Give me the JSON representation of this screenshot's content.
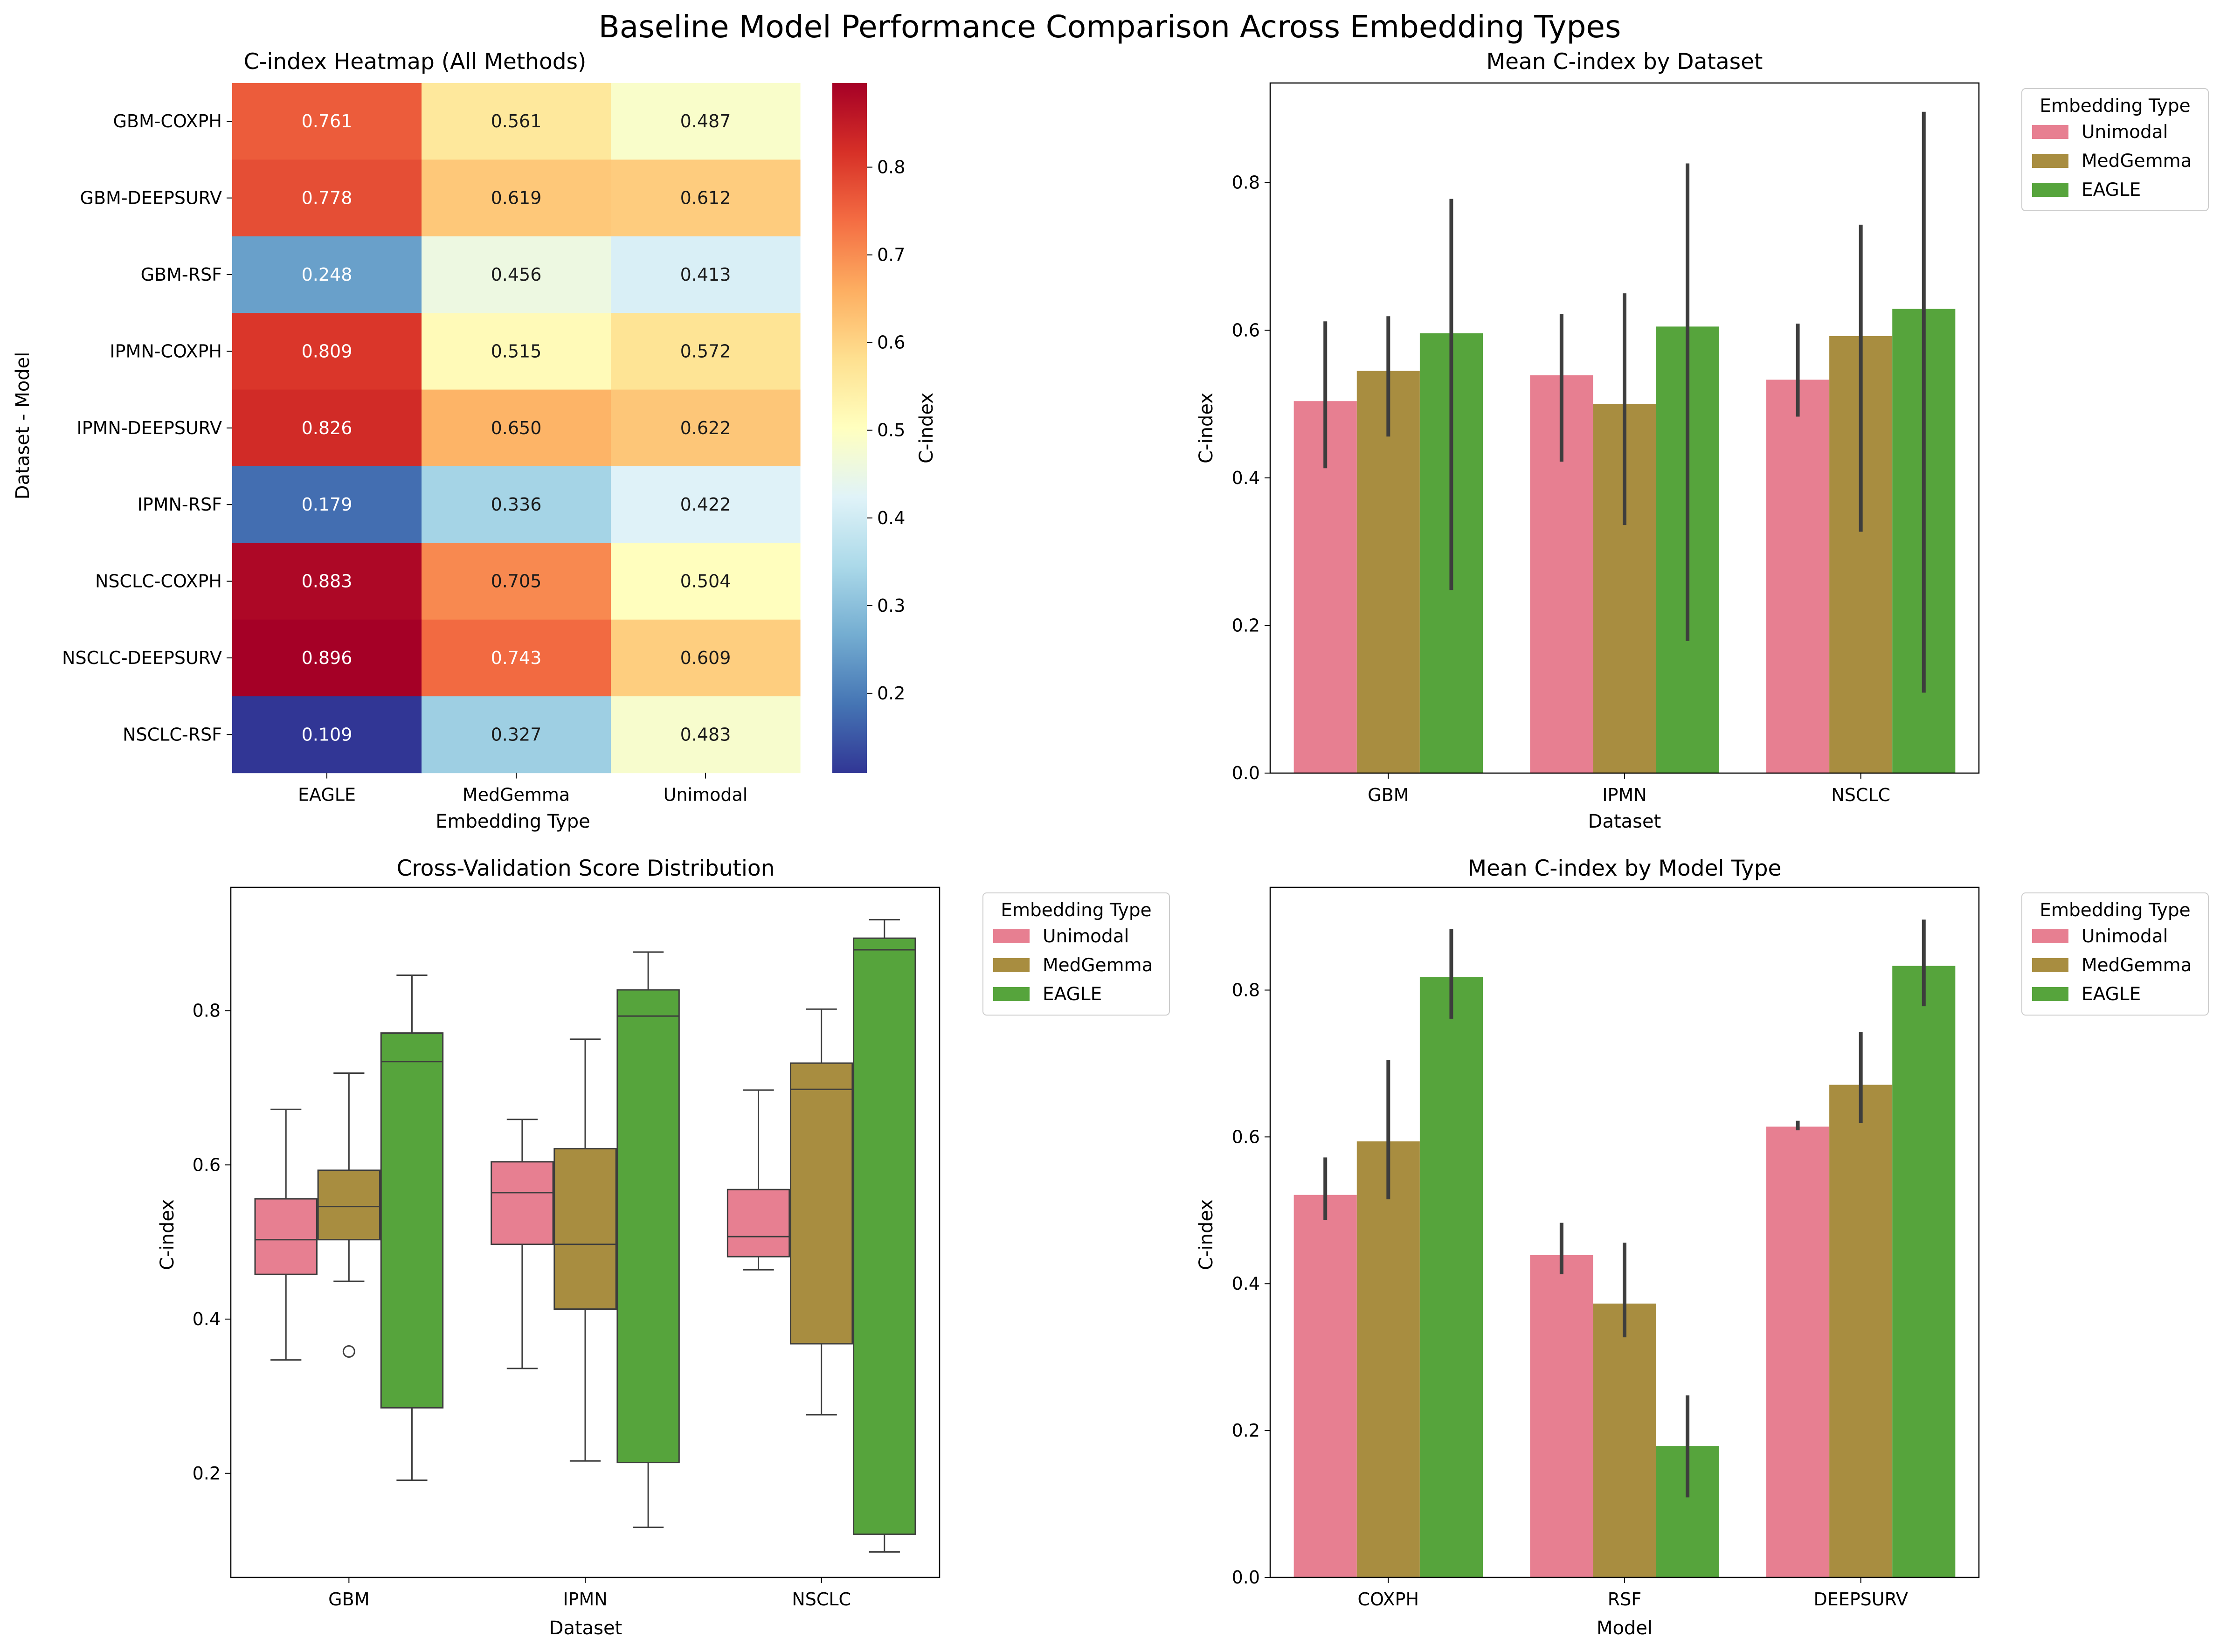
{
  "figure_title": "Baseline Model Performance Comparison Across Embedding Types",
  "colors": {
    "Unimodal": "#e77f91",
    "MedGemma": "#a88d40",
    "EAGLE": "#56a43c",
    "errorbar": "#3d3d3d",
    "colormap": "RdYlBu_r"
  },
  "chart_data": [
    {
      "type": "heatmap",
      "title": "C-index Heatmap (All Methods)",
      "xlabel": "Embedding Type",
      "ylabel": "Dataset - Model",
      "x_categories": [
        "EAGLE",
        "MedGemma",
        "Unimodal"
      ],
      "y_categories": [
        "GBM-COXPH",
        "GBM-DEEPSURV",
        "GBM-RSF",
        "IPMN-COXPH",
        "IPMN-DEEPSURV",
        "IPMN-RSF",
        "NSCLC-COXPH",
        "NSCLC-DEEPSURV",
        "NSCLC-RSF"
      ],
      "values": [
        [
          0.761,
          0.561,
          0.487
        ],
        [
          0.778,
          0.619,
          0.612
        ],
        [
          0.248,
          0.456,
          0.413
        ],
        [
          0.809,
          0.515,
          0.572
        ],
        [
          0.826,
          0.65,
          0.622
        ],
        [
          0.179,
          0.336,
          0.422
        ],
        [
          0.883,
          0.705,
          0.504
        ],
        [
          0.896,
          0.743,
          0.609
        ],
        [
          0.109,
          0.327,
          0.483
        ]
      ],
      "value_labels": [
        [
          "0.761",
          "0.561",
          "0.487"
        ],
        [
          "0.778",
          "0.619",
          "0.612"
        ],
        [
          "0.248",
          "0.456",
          "0.413"
        ],
        [
          "0.809",
          "0.515",
          "0.572"
        ],
        [
          "0.826",
          "0.650",
          "0.622"
        ],
        [
          "0.179",
          "0.336",
          "0.422"
        ],
        [
          "0.883",
          "0.705",
          "0.504"
        ],
        [
          "0.896",
          "0.743",
          "0.609"
        ],
        [
          "0.109",
          "0.327",
          "0.483"
        ]
      ],
      "colorbar": {
        "label": "C-index",
        "range": [
          0.109,
          0.896
        ],
        "ticks": [
          0.2,
          0.3,
          0.4,
          0.5,
          0.6,
          0.7,
          0.8
        ],
        "tick_labels": [
          "0.2",
          "0.3",
          "0.4",
          "0.5",
          "0.6",
          "0.7",
          "0.8"
        ]
      }
    },
    {
      "type": "bar",
      "title": "Mean C-index by Dataset",
      "xlabel": "Dataset",
      "ylabel": "C-index",
      "categories": [
        "GBM",
        "IPMN",
        "NSCLC"
      ],
      "ylim": [
        0,
        0.935
      ],
      "yticks": [
        0.0,
        0.2,
        0.4,
        0.6,
        0.8
      ],
      "ytick_labels": [
        "0.0",
        "0.2",
        "0.4",
        "0.6",
        "0.8"
      ],
      "legend_title": "Embedding Type",
      "legend_position": "outside upper right",
      "series": [
        {
          "name": "Unimodal",
          "values": [
            0.504,
            0.539,
            0.533
          ],
          "err_low": [
            0.413,
            0.422,
            0.483
          ],
          "err_high": [
            0.612,
            0.622,
            0.609
          ]
        },
        {
          "name": "MedGemma",
          "values": [
            0.545,
            0.5,
            0.592
          ],
          "err_low": [
            0.456,
            0.336,
            0.327
          ],
          "err_high": [
            0.619,
            0.65,
            0.743
          ]
        },
        {
          "name": "EAGLE",
          "values": [
            0.596,
            0.605,
            0.629
          ],
          "err_low": [
            0.248,
            0.179,
            0.109
          ],
          "err_high": [
            0.778,
            0.826,
            0.896
          ]
        }
      ]
    },
    {
      "type": "box",
      "title": "Cross-Validation Score Distribution",
      "xlabel": "Dataset",
      "ylabel": "C-index",
      "categories": [
        "GBM",
        "IPMN",
        "NSCLC"
      ],
      "ylim": [
        0.065,
        0.96
      ],
      "yticks": [
        0.2,
        0.4,
        0.6,
        0.8
      ],
      "ytick_labels": [
        "0.2",
        "0.4",
        "0.6",
        "0.8"
      ],
      "legend_title": "Embedding Type",
      "legend_position": "outside upper right",
      "series": [
        {
          "name": "Unimodal",
          "boxes": [
            {
              "whislo": 0.347,
              "q1": 0.458,
              "med": 0.503,
              "q3": 0.556,
              "whishi": 0.672,
              "fliers": []
            },
            {
              "whislo": 0.336,
              "q1": 0.497,
              "med": 0.564,
              "q3": 0.604,
              "whishi": 0.659,
              "fliers": []
            },
            {
              "whislo": 0.464,
              "q1": 0.481,
              "med": 0.507,
              "q3": 0.568,
              "whishi": 0.697,
              "fliers": []
            }
          ]
        },
        {
          "name": "MedGemma",
          "boxes": [
            {
              "whislo": 0.449,
              "q1": 0.503,
              "med": 0.546,
              "q3": 0.593,
              "whishi": 0.719,
              "fliers": [
                0.358
              ]
            },
            {
              "whislo": 0.216,
              "q1": 0.413,
              "med": 0.497,
              "q3": 0.621,
              "whishi": 0.763,
              "fliers": []
            },
            {
              "whislo": 0.276,
              "q1": 0.368,
              "med": 0.698,
              "q3": 0.732,
              "whishi": 0.802,
              "fliers": []
            }
          ]
        },
        {
          "name": "EAGLE",
          "boxes": [
            {
              "whislo": 0.191,
              "q1": 0.285,
              "med": 0.734,
              "q3": 0.771,
              "whishi": 0.846,
              "fliers": []
            },
            {
              "whislo": 0.13,
              "q1": 0.214,
              "med": 0.793,
              "q3": 0.827,
              "whishi": 0.876,
              "fliers": []
            },
            {
              "whislo": 0.098,
              "q1": 0.121,
              "med": 0.879,
              "q3": 0.894,
              "whishi": 0.918,
              "fliers": []
            }
          ]
        }
      ]
    },
    {
      "type": "bar",
      "title": "Mean C-index by Model Type",
      "xlabel": "Model",
      "ylabel": "C-index",
      "categories": [
        "COXPH",
        "RSF",
        "DEEPSURV"
      ],
      "ylim": [
        0,
        0.94
      ],
      "yticks": [
        0.0,
        0.2,
        0.4,
        0.6,
        0.8
      ],
      "ytick_labels": [
        "0.0",
        "0.2",
        "0.4",
        "0.6",
        "0.8"
      ],
      "legend_title": "Embedding Type",
      "legend_position": "outside upper right",
      "series": [
        {
          "name": "Unimodal",
          "values": [
            0.521,
            0.439,
            0.614
          ],
          "err_low": [
            0.487,
            0.413,
            0.609
          ],
          "err_high": [
            0.572,
            0.483,
            0.622
          ]
        },
        {
          "name": "MedGemma",
          "values": [
            0.594,
            0.373,
            0.671
          ],
          "err_low": [
            0.515,
            0.327,
            0.619
          ],
          "err_high": [
            0.705,
            0.456,
            0.743
          ]
        },
        {
          "name": "EAGLE",
          "values": [
            0.818,
            0.179,
            0.833
          ],
          "err_low": [
            0.761,
            0.109,
            0.778
          ],
          "err_high": [
            0.883,
            0.248,
            0.896
          ]
        }
      ]
    }
  ]
}
